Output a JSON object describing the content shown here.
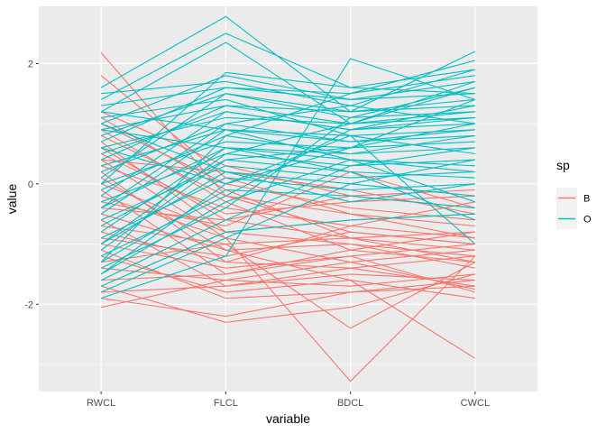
{
  "chart_data": {
    "type": "line",
    "subtype": "parallel-coordinates",
    "xlabel": "variable",
    "ylabel": "value",
    "categories": [
      "RWCL",
      "FLCL",
      "BDCL",
      "CWCL"
    ],
    "ylim": [
      -3.45,
      2.95
    ],
    "yticks": [
      -2,
      0,
      2
    ],
    "grid": true,
    "legend": {
      "title": "sp",
      "position": "right",
      "entries": [
        {
          "label": "B",
          "color": "#F8766D"
        },
        {
          "label": "O",
          "color": "#00BFC4"
        }
      ]
    },
    "series": [
      {
        "group": "B",
        "color": "#F8766D",
        "lines": [
          [
            2.18,
            -0.2,
            -0.8,
            -1.0
          ],
          [
            1.8,
            0.1,
            -0.5,
            -0.9
          ],
          [
            -2.05,
            -1.6,
            -1.3,
            -1.75
          ],
          [
            -1.9,
            -2.2,
            -1.8,
            -1.6
          ],
          [
            -1.7,
            -2.3,
            -2.05,
            -1.5
          ],
          [
            0.4,
            -0.9,
            -3.28,
            -1.2
          ],
          [
            -0.7,
            -1.0,
            -2.4,
            -1.3
          ],
          [
            -1.2,
            -1.8,
            -1.6,
            -2.9
          ],
          [
            -0.3,
            -0.7,
            0.2,
            -0.4
          ],
          [
            0.9,
            -0.3,
            -1.1,
            -0.8
          ],
          [
            0.6,
            -0.6,
            -0.9,
            -1.1
          ],
          [
            0.2,
            -1.3,
            -1.4,
            -1.7
          ],
          [
            -0.5,
            -1.1,
            -1.0,
            -1.4
          ],
          [
            -1.0,
            -1.4,
            -1.2,
            -1.8
          ],
          [
            -1.4,
            -1.6,
            -1.7,
            -1.5
          ],
          [
            0.0,
            -0.8,
            -0.6,
            -0.5
          ],
          [
            0.5,
            -0.5,
            -0.3,
            -0.2
          ],
          [
            1.0,
            0.0,
            -0.4,
            -0.6
          ],
          [
            -0.9,
            -1.2,
            -0.8,
            -1.0
          ],
          [
            -1.6,
            -1.5,
            -1.1,
            -1.3
          ],
          [
            0.3,
            -0.4,
            -0.7,
            -0.3
          ],
          [
            -0.2,
            -0.9,
            -1.3,
            -1.1
          ],
          [
            0.8,
            -0.2,
            -0.5,
            -0.7
          ],
          [
            -0.6,
            -1.7,
            -1.5,
            -1.6
          ],
          [
            -1.3,
            -1.0,
            -0.9,
            -0.8
          ],
          [
            0.1,
            -1.1,
            -1.6,
            -1.9
          ],
          [
            -0.4,
            -0.6,
            -0.2,
            -0.1
          ],
          [
            0.7,
            -0.8,
            -1.0,
            -1.2
          ],
          [
            -1.1,
            -1.9,
            -1.8,
            -1.7
          ],
          [
            1.2,
            0.3,
            -0.2,
            -0.4
          ],
          [
            -0.8,
            -1.3,
            -0.7,
            -0.9
          ],
          [
            -1.8,
            -1.7,
            -1.4,
            -1.2
          ],
          [
            0.4,
            0.2,
            -0.1,
            -0.5
          ],
          [
            -0.1,
            -1.5,
            -1.2,
            -1.0
          ],
          [
            1.1,
            -0.1,
            -0.9,
            -1.3
          ]
        ]
      },
      {
        "group": "O",
        "color": "#00BFC4",
        "lines": [
          [
            1.6,
            2.78,
            1.2,
            2.2
          ],
          [
            1.4,
            2.5,
            1.6,
            1.9
          ],
          [
            1.2,
            2.35,
            1.0,
            1.6
          ],
          [
            -1.9,
            -1.2,
            2.08,
            1.4
          ],
          [
            -1.7,
            -0.8,
            -0.6,
            -0.5
          ],
          [
            -1.5,
            0.0,
            0.8,
            -1.0
          ],
          [
            1.0,
            1.8,
            1.4,
            1.7
          ],
          [
            0.8,
            1.5,
            1.1,
            1.2
          ],
          [
            0.5,
            1.2,
            0.9,
            1.0
          ],
          [
            0.2,
            1.0,
            0.7,
            0.8
          ],
          [
            -0.1,
            0.8,
            0.5,
            0.6
          ],
          [
            -0.4,
            0.6,
            0.4,
            0.3
          ],
          [
            -0.7,
            0.4,
            0.2,
            0.1
          ],
          [
            -1.0,
            0.2,
            0.0,
            -0.2
          ],
          [
            -1.3,
            -0.1,
            -0.2,
            -0.4
          ],
          [
            1.3,
            1.6,
            1.5,
            1.8
          ],
          [
            0.9,
            1.3,
            1.2,
            1.4
          ],
          [
            0.6,
            1.1,
            1.0,
            1.1
          ],
          [
            0.3,
            0.9,
            0.8,
            0.9
          ],
          [
            0.0,
            0.7,
            0.6,
            0.7
          ],
          [
            -0.3,
            0.5,
            0.3,
            0.4
          ],
          [
            -0.6,
            0.3,
            0.1,
            0.2
          ],
          [
            -0.9,
            0.1,
            -0.1,
            0.0
          ],
          [
            -1.2,
            -0.2,
            0.9,
            1.3
          ],
          [
            -1.4,
            -0.4,
            1.1,
            1.6
          ],
          [
            1.5,
            1.7,
            1.3,
            1.0
          ],
          [
            1.1,
            1.4,
            0.8,
            0.5
          ],
          [
            0.7,
            1.6,
            1.4,
            1.5
          ],
          [
            0.4,
            1.3,
            1.0,
            1.2
          ],
          [
            0.1,
            1.5,
            1.2,
            1.3
          ],
          [
            -0.2,
            1.2,
            0.9,
            1.1
          ],
          [
            -0.5,
            0.9,
            0.7,
            0.9
          ],
          [
            -0.8,
            0.6,
            0.5,
            0.8
          ],
          [
            -1.1,
            0.4,
            0.6,
            1.0
          ],
          [
            -1.6,
            -0.6,
            0.3,
            0.6
          ],
          [
            -1.8,
            -0.9,
            0.0,
            0.4
          ],
          [
            1.2,
            0.9,
            0.4,
            -0.3
          ],
          [
            0.9,
            0.6,
            0.2,
            -0.6
          ],
          [
            -0.4,
            1.0,
            1.3,
            1.9
          ],
          [
            -1.0,
            0.5,
            1.0,
            1.7
          ],
          [
            -1.3,
            0.8,
            1.5,
            2.05
          ],
          [
            0.0,
            1.85,
            1.6,
            1.5
          ],
          [
            1.0,
            0.2,
            -0.3,
            0.0
          ],
          [
            -1.5,
            -0.3,
            0.4,
            0.2
          ],
          [
            0.6,
            0.0,
            0.6,
            1.4
          ]
        ]
      }
    ]
  }
}
